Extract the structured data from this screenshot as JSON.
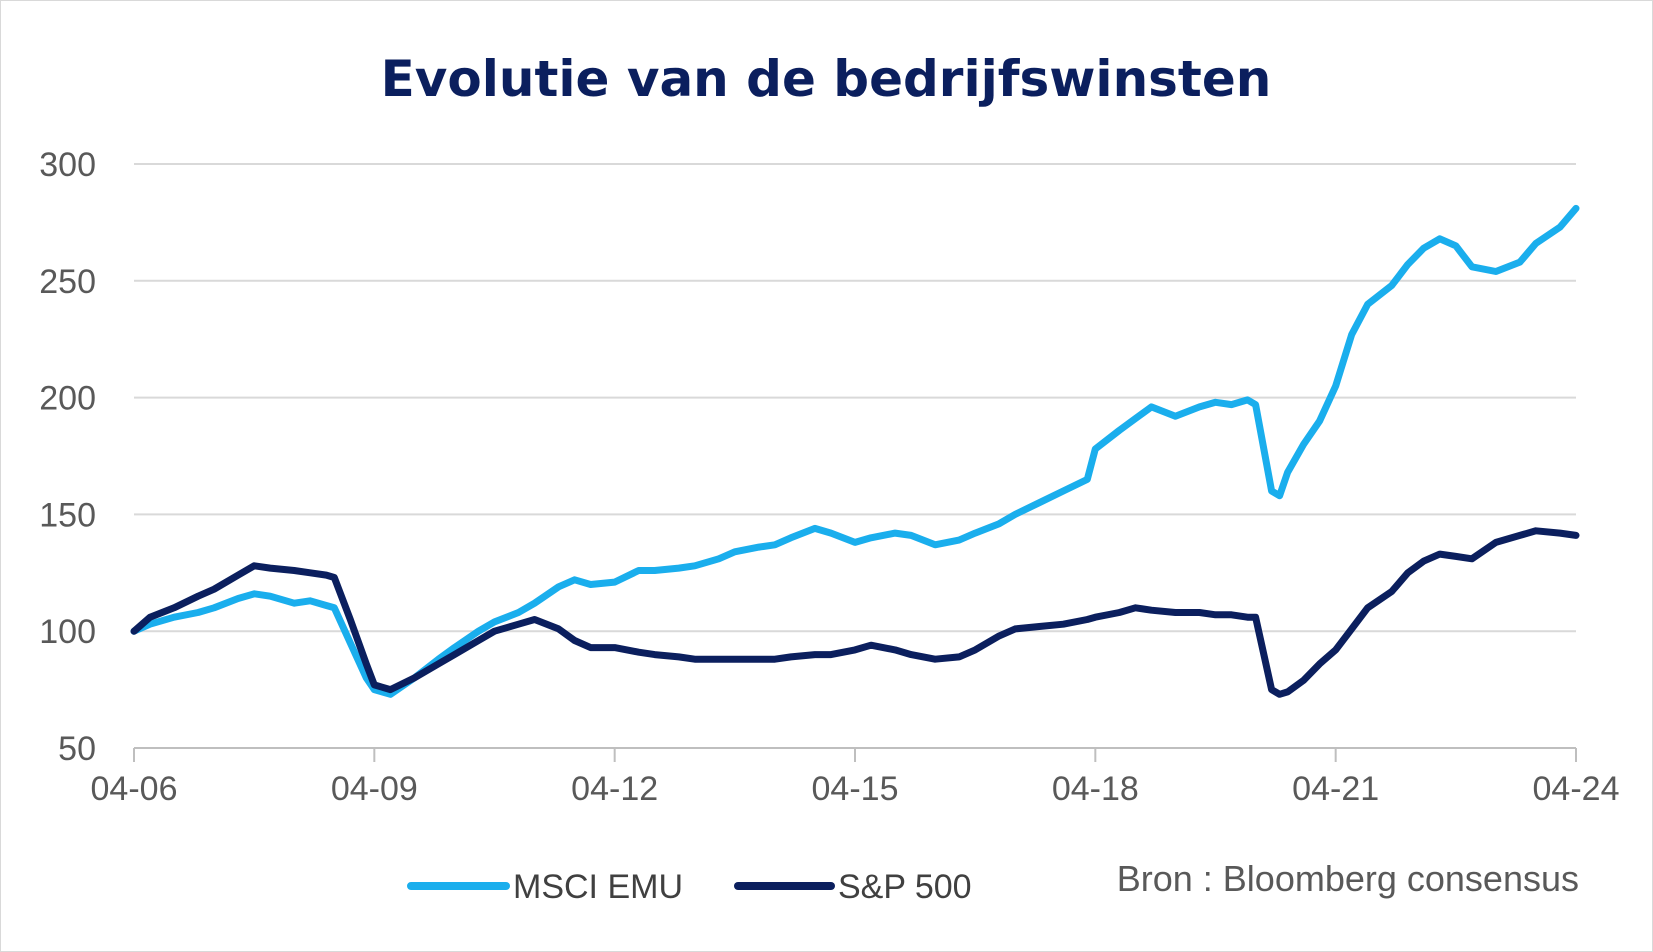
{
  "chart_data": {
    "type": "line",
    "title": "Evolutie van de bedrijfswinsten",
    "xlabel": "",
    "ylabel": "",
    "ylim": [
      50,
      300
    ],
    "yticks": [
      50,
      100,
      150,
      200,
      250,
      300
    ],
    "ytick_labels": [
      "50",
      "100",
      "150",
      "200",
      "250",
      "300"
    ],
    "xlim": [
      2006.0,
      2024.0
    ],
    "xticks": [
      2006,
      2009,
      2012,
      2015,
      2018,
      2021,
      2024
    ],
    "xtick_labels": [
      "04-06",
      "04-09",
      "04-12",
      "04-15",
      "04-18",
      "04-21",
      "04-24"
    ],
    "grid": "horizontal",
    "legend_position": "bottom-center",
    "source": "Bron : Bloomberg consensus",
    "series": [
      {
        "name": "MSCI EMU",
        "color": "#1aaeed",
        "x": [
          2006.0,
          2006.2,
          2006.5,
          2006.8,
          2007.0,
          2007.3,
          2007.5,
          2007.7,
          2008.0,
          2008.2,
          2008.4,
          2008.5,
          2008.7,
          2008.9,
          2009.0,
          2009.2,
          2009.5,
          2009.8,
          2010.0,
          2010.3,
          2010.5,
          2010.8,
          2011.0,
          2011.3,
          2011.5,
          2011.7,
          2012.0,
          2012.3,
          2012.5,
          2012.8,
          2013.0,
          2013.3,
          2013.5,
          2013.8,
          2014.0,
          2014.2,
          2014.5,
          2014.7,
          2015.0,
          2015.2,
          2015.5,
          2015.7,
          2016.0,
          2016.3,
          2016.5,
          2016.8,
          2017.0,
          2017.3,
          2017.6,
          2017.9,
          2018.0,
          2018.3,
          2018.5,
          2018.7,
          2019.0,
          2019.3,
          2019.5,
          2019.7,
          2019.9,
          2020.0,
          2020.2,
          2020.3,
          2020.4,
          2020.6,
          2020.8,
          2021.0,
          2021.2,
          2021.4,
          2021.7,
          2021.9,
          2022.1,
          2022.3,
          2022.5,
          2022.7,
          2023.0,
          2023.3,
          2023.5,
          2023.8,
          2024.0
        ],
        "values": [
          100,
          103,
          106,
          108,
          110,
          114,
          116,
          115,
          112,
          113,
          111,
          110,
          95,
          80,
          75,
          73,
          80,
          88,
          93,
          100,
          104,
          108,
          112,
          119,
          122,
          120,
          121,
          126,
          126,
          127,
          128,
          131,
          134,
          136,
          137,
          140,
          144,
          142,
          138,
          140,
          142,
          141,
          137,
          139,
          142,
          146,
          150,
          155,
          160,
          165,
          178,
          186,
          191,
          196,
          192,
          196,
          198,
          197,
          199,
          197,
          160,
          158,
          168,
          180,
          190,
          205,
          227,
          240,
          248,
          257,
          264,
          268,
          265,
          256,
          254,
          258,
          266,
          273,
          281
        ]
      },
      {
        "name": "S&P 500",
        "color": "#0b1f5e",
        "x": [
          2006.0,
          2006.2,
          2006.5,
          2006.8,
          2007.0,
          2007.3,
          2007.5,
          2007.7,
          2008.0,
          2008.2,
          2008.4,
          2008.5,
          2008.7,
          2008.9,
          2009.0,
          2009.2,
          2009.5,
          2009.8,
          2010.0,
          2010.3,
          2010.5,
          2010.8,
          2011.0,
          2011.3,
          2011.5,
          2011.7,
          2012.0,
          2012.3,
          2012.5,
          2012.8,
          2013.0,
          2013.3,
          2013.5,
          2013.8,
          2014.0,
          2014.2,
          2014.5,
          2014.7,
          2015.0,
          2015.2,
          2015.5,
          2015.7,
          2016.0,
          2016.3,
          2016.5,
          2016.8,
          2017.0,
          2017.3,
          2017.6,
          2017.9,
          2018.0,
          2018.3,
          2018.5,
          2018.7,
          2019.0,
          2019.3,
          2019.5,
          2019.7,
          2019.9,
          2020.0,
          2020.2,
          2020.3,
          2020.4,
          2020.6,
          2020.8,
          2021.0,
          2021.2,
          2021.4,
          2021.7,
          2021.9,
          2022.1,
          2022.3,
          2022.5,
          2022.7,
          2023.0,
          2023.3,
          2023.5,
          2023.8,
          2024.0
        ],
        "values": [
          100,
          106,
          110,
          115,
          118,
          124,
          128,
          127,
          126,
          125,
          124,
          123,
          105,
          86,
          77,
          75,
          80,
          86,
          90,
          96,
          100,
          103,
          105,
          101,
          96,
          93,
          93,
          91,
          90,
          89,
          88,
          88,
          88,
          88,
          88,
          89,
          90,
          90,
          92,
          94,
          92,
          90,
          88,
          89,
          92,
          98,
          101,
          102,
          103,
          105,
          106,
          108,
          110,
          109,
          108,
          108,
          107,
          107,
          106,
          106,
          75,
          73,
          74,
          79,
          86,
          92,
          101,
          110,
          117,
          125,
          130,
          133,
          132,
          131,
          138,
          141,
          143,
          142,
          141
        ]
      }
    ]
  }
}
